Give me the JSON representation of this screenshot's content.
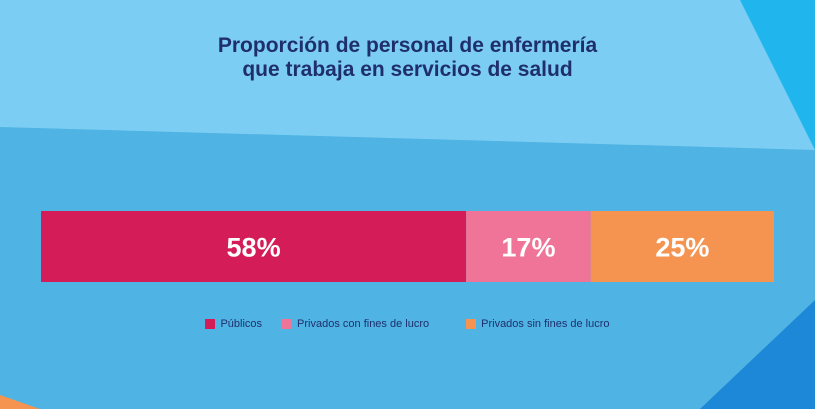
{
  "title": {
    "line1": "Proporción de personal de enfermería",
    "line2": "que trabaja en servicios de salud"
  },
  "colors": {
    "title": "#1f2f6e",
    "background_top": "#7ccdf3",
    "background_bottom": "#4fb3e3",
    "publicos": "#d41c58",
    "privados_con_fines": "#f07497",
    "privados_sin_fines": "#f59450"
  },
  "chart_data": {
    "type": "bar",
    "orientation": "horizontal-stacked-100",
    "unit": "%",
    "series": [
      {
        "name": "Públicos",
        "value": 58,
        "label": "58%",
        "color": "#d41c58"
      },
      {
        "name": "Privados con fines de lucro",
        "value": 17,
        "label": "17%",
        "color": "#f07497"
      },
      {
        "name": "Privados sin fines de lucro",
        "value": 25,
        "label": "25%",
        "color": "#f59450"
      }
    ],
    "legend_position": "bottom"
  }
}
